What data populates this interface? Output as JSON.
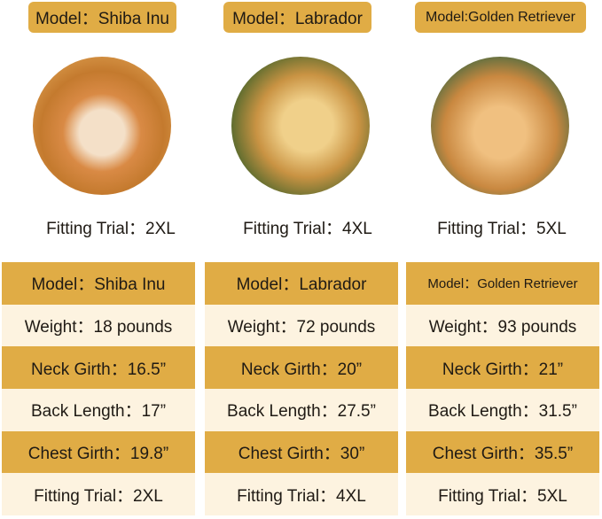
{
  "colors": {
    "gold": "#e0ac45",
    "cream": "#fdf3e0"
  },
  "dogs": [
    {
      "model_label": "Model：Shiba Inu",
      "photo": "shiba-inu-photo",
      "fitting": "Fitting Trial：2XL",
      "rows": [
        "Model：Shiba Inu",
        "Weight：18 pounds",
        "Neck Girth：16.5”",
        "Back Length：17”",
        "Chest Girth：19.8”",
        "Fitting Trial：2XL"
      ]
    },
    {
      "model_label": "Model：Labrador",
      "photo": "labrador-photo",
      "fitting": "Fitting Trial：4XL",
      "rows": [
        "Model：Labrador",
        "Weight：72 pounds",
        "Neck Girth：20”",
        "Back Length：27.5”",
        "Chest Girth：30”",
        "Fitting Trial：4XL"
      ]
    },
    {
      "model_label": "Model:Golden Retriever",
      "photo": "golden-retriever-photo",
      "fitting": "Fitting Trial：5XL",
      "rows": [
        "Model：Golden Retriever",
        "Weight：93 pounds",
        "Neck Girth：21”",
        "Back Length：31.5”",
        "Chest Girth：35.5”",
        "Fitting Trial：5XL"
      ]
    }
  ]
}
